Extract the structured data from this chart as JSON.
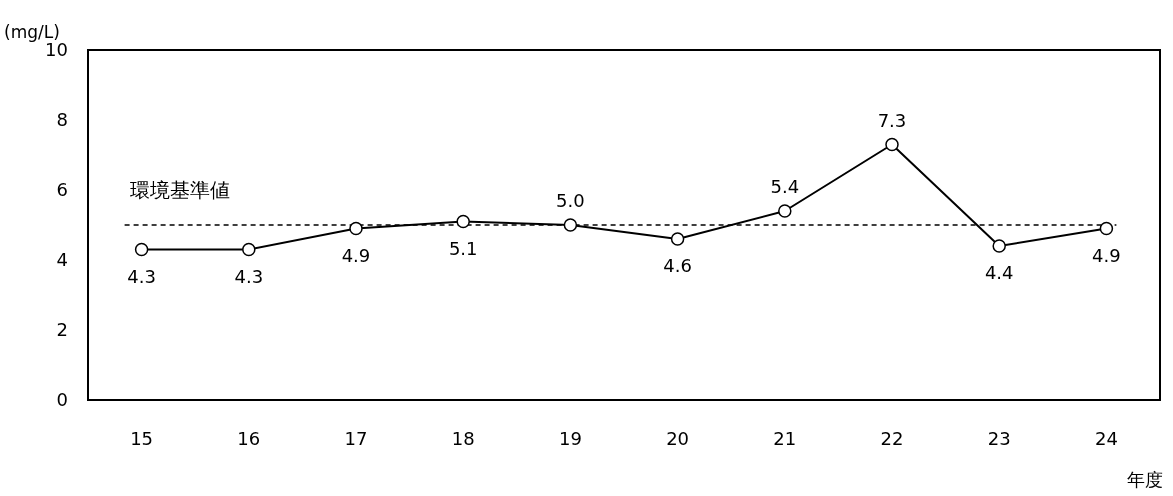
{
  "chart_data": {
    "type": "line",
    "categories": [
      "15",
      "16",
      "17",
      "18",
      "19",
      "20",
      "21",
      "22",
      "23",
      "24"
    ],
    "values": [
      4.3,
      4.3,
      4.9,
      5.1,
      5.0,
      4.6,
      5.4,
      7.3,
      4.4,
      4.9
    ],
    "value_labels": [
      "4.3",
      "4.3",
      "4.9",
      "5.1",
      "5.0",
      "4.6",
      "5.4",
      "7.3",
      "4.4",
      "4.9"
    ],
    "color": "#000000",
    "marker": "circle",
    "line_style": "solid",
    "ylabel": "(mg/L)",
    "xlabel": "年度",
    "ylim": [
      0,
      10
    ],
    "yticks": [
      0,
      2,
      4,
      6,
      8,
      10
    ],
    "grid": false,
    "ref_lines": [
      {
        "axis": "y",
        "value": 5,
        "label": "環境基準値",
        "color": "#000000",
        "line_style": "dashed"
      }
    ]
  }
}
